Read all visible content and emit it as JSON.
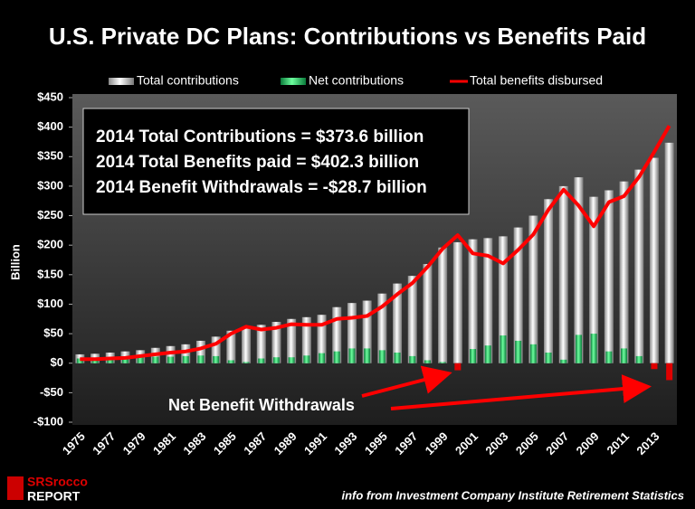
{
  "chart_data": {
    "type": "bar_line",
    "title": "U.S. Private DC Plans: Contributions vs Benefits Paid",
    "y_label": "Billion",
    "categories": [
      "1975",
      null,
      "1977",
      null,
      "1979",
      null,
      "1981",
      null,
      "1983",
      null,
      "1985",
      null,
      "1987",
      null,
      "1989",
      null,
      "1991",
      null,
      "1993",
      null,
      "1995",
      null,
      "1997",
      null,
      "1999",
      null,
      "2001",
      null,
      "2003",
      null,
      "2005",
      null,
      "2007",
      null,
      "2009",
      null,
      "2011",
      null,
      "2013",
      null
    ],
    "series": [
      {
        "name": "Total contributions",
        "kind": "bar",
        "color": "#b8b8b8",
        "values": [
          15,
          16,
          18,
          20,
          22,
          26,
          29,
          32,
          38,
          45,
          55,
          60,
          65,
          70,
          75,
          78,
          82,
          95,
          102,
          106,
          118,
          135,
          148,
          168,
          196,
          205,
          210,
          212,
          215,
          230,
          250,
          278,
          300,
          315,
          282,
          293,
          308,
          328,
          348,
          373.6
        ]
      },
      {
        "name": "Net contributions",
        "kind": "bar",
        "color": "#2ecc6a",
        "negative_color": "#e00000",
        "values": [
          8,
          9,
          10,
          10,
          10,
          11,
          11,
          12,
          13,
          12,
          5,
          2,
          8,
          10,
          10,
          13,
          17,
          20,
          25,
          25,
          22,
          18,
          12,
          5,
          2,
          -12,
          24,
          30,
          47,
          38,
          32,
          18,
          6,
          48,
          50,
          20,
          25,
          12,
          -10,
          -28.7
        ]
      },
      {
        "name": "Total benefits disbursed",
        "kind": "line",
        "color": "#ff0000",
        "values": [
          7,
          7,
          8,
          9,
          12,
          15,
          18,
          20,
          25,
          33,
          50,
          62,
          57,
          60,
          66,
          65,
          65,
          75,
          77,
          80,
          96,
          117,
          136,
          163,
          194,
          217,
          186,
          182,
          169,
          192,
          218,
          260,
          294,
          267,
          232,
          273,
          283,
          316,
          358,
          402.3
        ]
      }
    ],
    "ylim": [
      -100,
      450
    ],
    "yticks": [
      {
        "value": -100,
        "label": "-$100"
      },
      {
        "value": -50,
        "label": "-$50"
      },
      {
        "value": 0,
        "label": "$0"
      },
      {
        "value": 50,
        "label": "$50"
      },
      {
        "value": 100,
        "label": "$100"
      },
      {
        "value": 150,
        "label": "$150"
      },
      {
        "value": 200,
        "label": "$200"
      },
      {
        "value": 250,
        "label": "$250"
      },
      {
        "value": 300,
        "label": "$300"
      },
      {
        "value": 350,
        "label": "$350"
      },
      {
        "value": 400,
        "label": "$400"
      },
      {
        "value": 450,
        "label": "$450"
      }
    ],
    "grid": false,
    "annotations": [
      "2014 Total Contributions = $373.6 billion",
      "2014 Total Benefits paid = $402.3 billion",
      "2014 Benefit Withdrawals = -$28.7 billion"
    ],
    "callout": "Net Benefit Withdrawals",
    "source": "info from Investment Company Institute Retirement Statistics",
    "logo": [
      "SRSrocco",
      "REPORT"
    ]
  }
}
